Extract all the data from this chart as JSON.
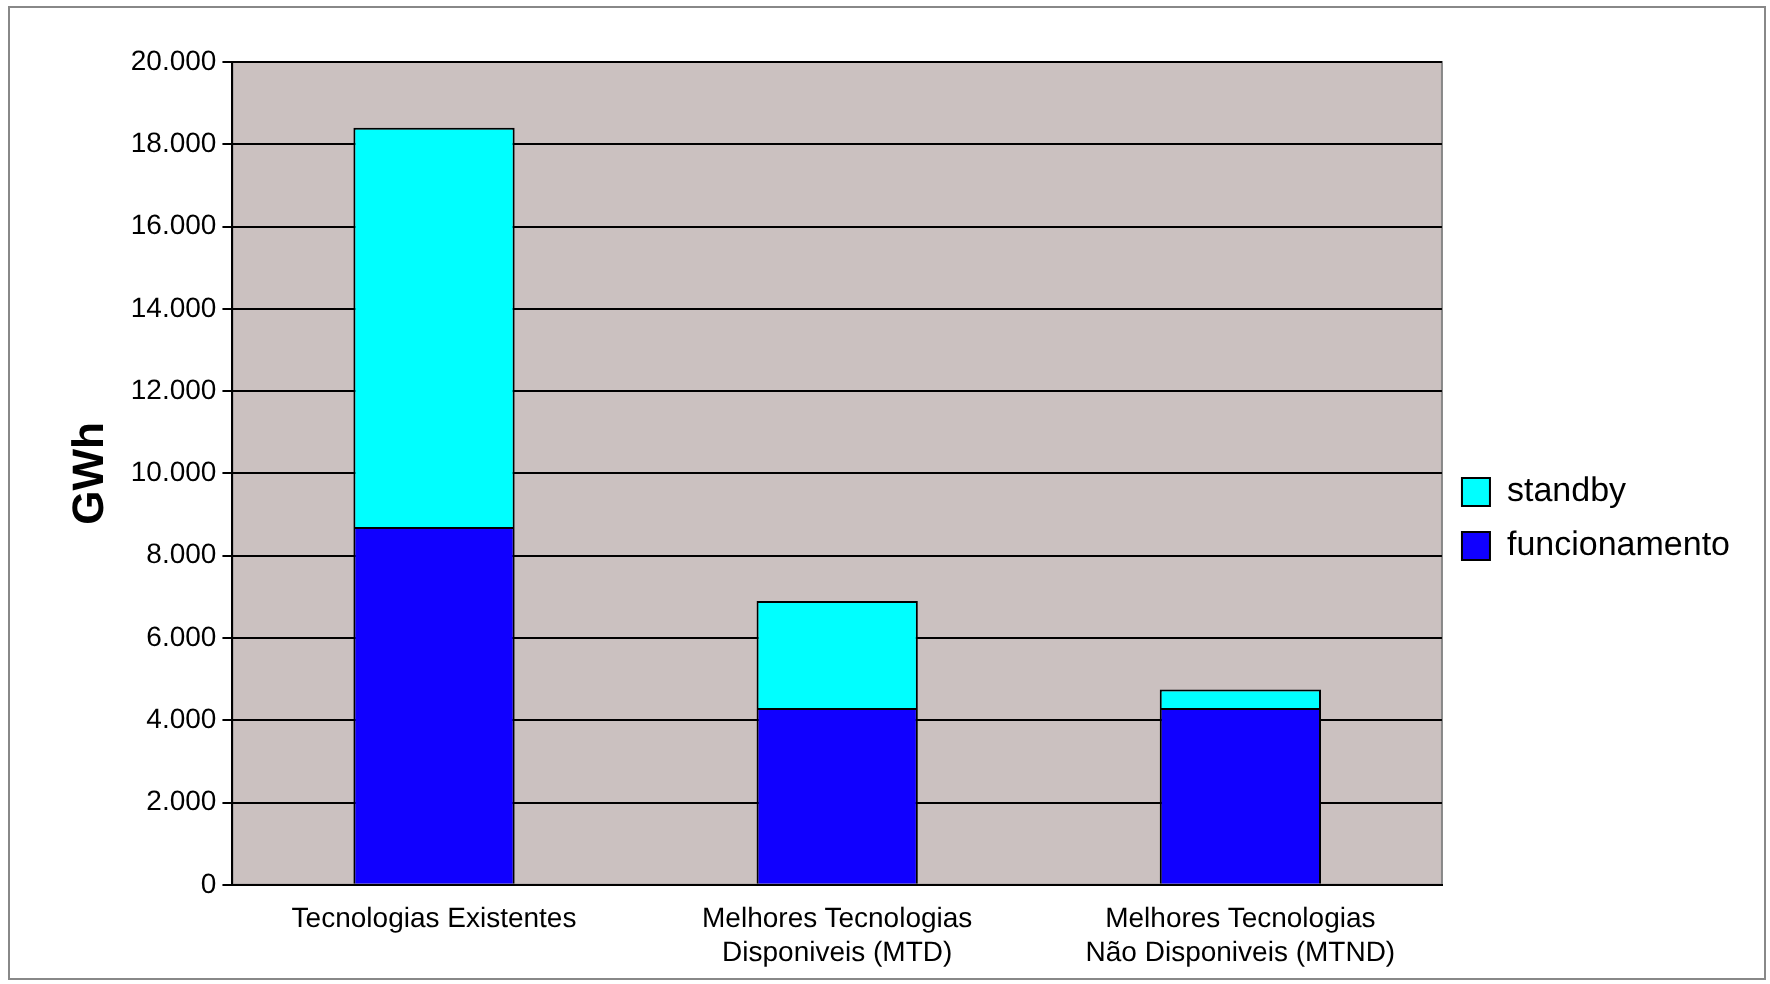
{
  "chart_data": {
    "type": "bar",
    "stacked": true,
    "ylabel": "GWh",
    "categories": [
      "Tecnologias Existentes",
      "Melhores Tecnologias Disponiveis (MTD)",
      "Melhores Tecnologias Não Disponiveis (MTND)"
    ],
    "series": [
      {
        "name": "funcionamento",
        "color": "#1000ff",
        "values": [
          8700,
          4300,
          4300
        ]
      },
      {
        "name": "standby",
        "color": "#00ffff",
        "values": [
          9700,
          2600,
          450
        ]
      }
    ],
    "ylim": [
      0,
      20000
    ],
    "yticks": [
      0,
      {
        "value": 2000,
        "label": "2.000"
      },
      {
        "value": 4000,
        "label": "4.000"
      },
      {
        "value": 6000,
        "label": "6.000"
      },
      {
        "value": 8000,
        "label": "8.000"
      },
      {
        "value": 10000,
        "label": "10.000"
      },
      {
        "value": 12000,
        "label": "12.000"
      },
      {
        "value": 14000,
        "label": "14.000"
      },
      {
        "value": 16000,
        "label": "16.000"
      },
      {
        "value": 18000,
        "label": "18.000"
      },
      {
        "value": 20000,
        "label": "20.000"
      }
    ],
    "grid": "y",
    "legend": "right"
  }
}
